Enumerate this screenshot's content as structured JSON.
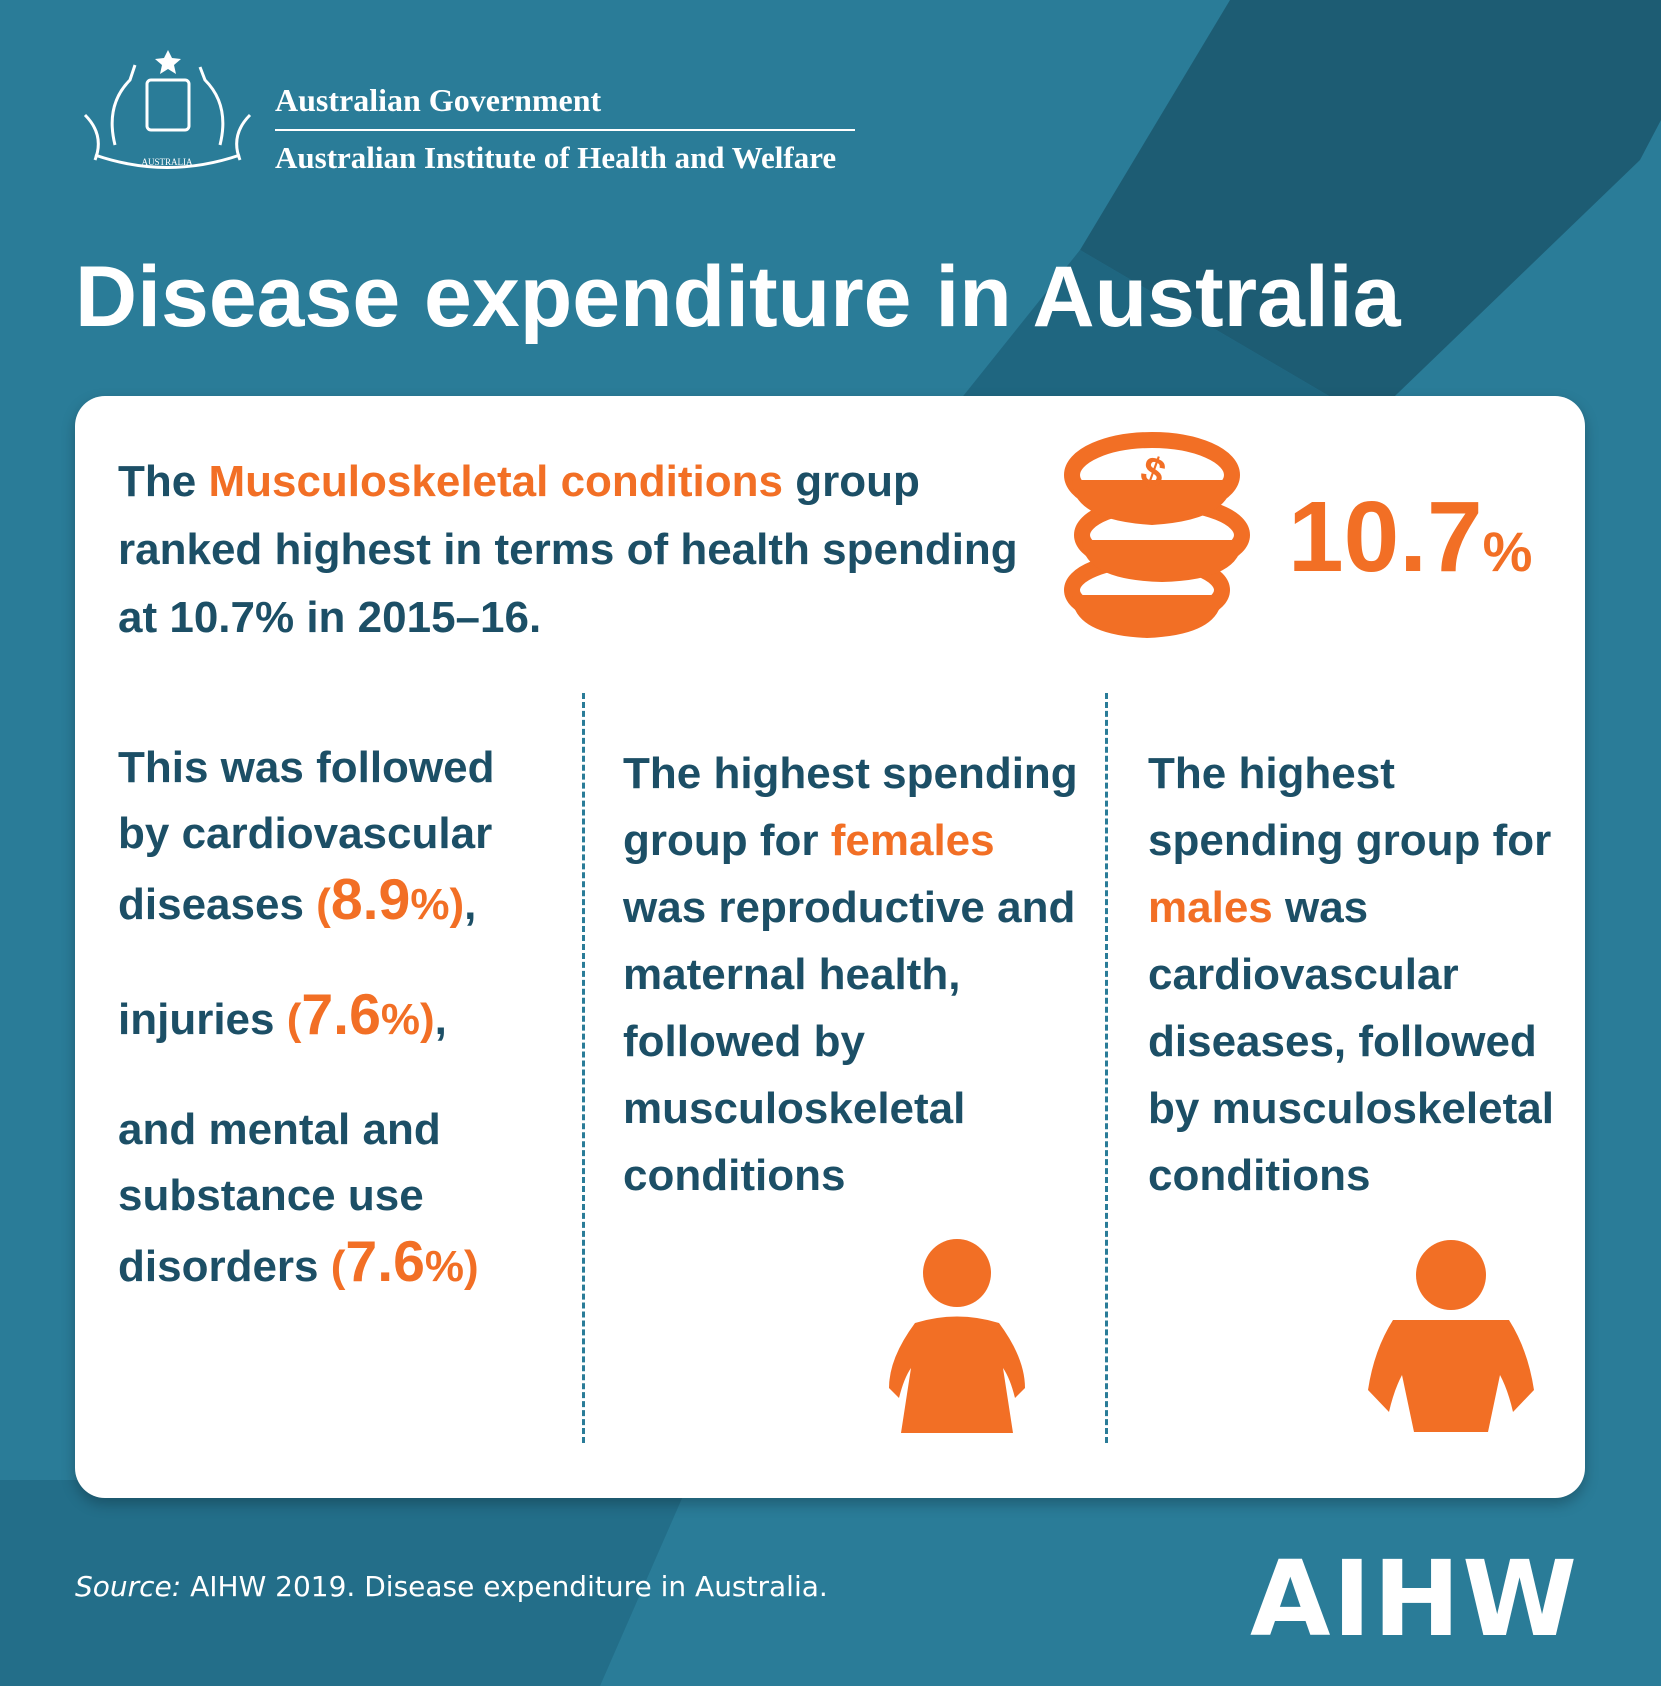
{
  "header": {
    "government": "Australian Government",
    "institute": "Australian Institute of Health and Welfare",
    "crest_label": "AUSTRALIA"
  },
  "title": "Disease expenditure in Australia",
  "headline": {
    "paragraphs": [
      [
        {
          "text": "The "
        },
        {
          "text": "Musculoskeletal conditions",
          "style": "accent"
        },
        {
          "text": " group ranked highest in terms of health spending at 10.7% in 2015–16."
        }
      ]
    ],
    "stat": {
      "value": "10.7",
      "unit": "%"
    }
  },
  "columns": [
    {
      "paragraphs": [
        [
          {
            "text": "This was followed by cardiovascular diseases "
          },
          {
            "text": "(",
            "style": "accent"
          },
          {
            "text": "8.9",
            "style": "big"
          },
          {
            "text": "%",
            "style": "accent"
          },
          {
            "text": ")",
            "style": "accent"
          },
          {
            "text": ","
          }
        ],
        [
          {
            "text": "injuries "
          },
          {
            "text": "(",
            "style": "accent"
          },
          {
            "text": "7.6",
            "style": "big"
          },
          {
            "text": "%",
            "style": "accent"
          },
          {
            "text": ")",
            "style": "accent"
          },
          {
            "text": ","
          }
        ],
        [
          {
            "text": "and mental and substance use disorders "
          },
          {
            "text": "(",
            "style": "accent"
          },
          {
            "text": "7.6",
            "style": "big"
          },
          {
            "text": "%",
            "style": "accent"
          },
          {
            "text": ")",
            "style": "accent"
          }
        ]
      ]
    },
    {
      "paragraphs": [
        [
          {
            "text": "The highest spending group for "
          },
          {
            "text": "females",
            "style": "accent"
          },
          {
            "text": " was reproductive and maternal health, followed by musculoskeletal conditions"
          }
        ]
      ]
    },
    {
      "paragraphs": [
        [
          {
            "text": "The highest spending group for "
          },
          {
            "text": "males",
            "style": "accent"
          },
          {
            "text": " was cardiovascular diseases, followed by musculoskeletal conditions"
          }
        ]
      ]
    }
  ],
  "source": {
    "label": "Source:",
    "text": " AIHW 2019. Disease expenditure in Australia."
  },
  "logo": "AIHW"
}
